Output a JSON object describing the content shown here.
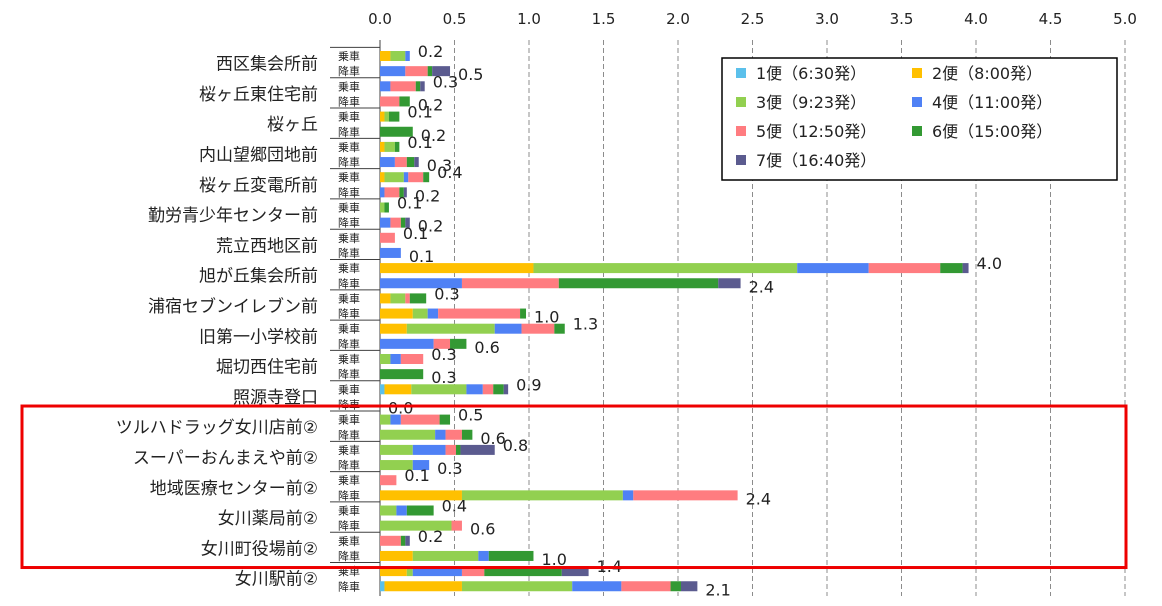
{
  "chart_data": {
    "type": "bar",
    "orientation": "horizontal",
    "stacked": true,
    "xlim": [
      0,
      5
    ],
    "x_ticks": [
      "0.0",
      "0.5",
      "1.0",
      "1.5",
      "2.0",
      "2.5",
      "3.0",
      "3.5",
      "4.0",
      "4.5",
      "5.0"
    ],
    "x_tick_values": [
      0,
      0.5,
      1,
      1.5,
      2,
      2.5,
      3,
      3.5,
      4,
      4.5,
      5
    ],
    "grid": "vertical dashed",
    "legend_position": "top-right",
    "row_kinds": [
      "乗車",
      "降車"
    ],
    "series": [
      {
        "name": "1便（6:30発）",
        "color": "#5bc0eb"
      },
      {
        "name": "2便（8:00発）",
        "color": "#ffc000"
      },
      {
        "name": "3便（9:23発）",
        "color": "#92d050"
      },
      {
        "name": "4便（11:00発）",
        "color": "#4f81f5"
      },
      {
        "name": "5便（12:50発）",
        "color": "#ff7c80"
      },
      {
        "name": "6便（15:00発）",
        "color": "#339933"
      },
      {
        "name": "7便（16:40発）",
        "color": "#5b5b8f"
      }
    ],
    "stops": [
      {
        "name": "西区集会所前",
        "boarding": {
          "values": [
            0,
            0.07,
            0.1,
            0.03,
            0,
            0,
            0
          ],
          "total_label": "0.2"
        },
        "alighting": {
          "values": [
            0,
            0,
            0,
            0.17,
            0.15,
            0.03,
            0.12
          ],
          "total_label": "0.5"
        }
      },
      {
        "name": "桜ヶ丘東住宅前",
        "boarding": {
          "values": [
            0,
            0,
            0,
            0.07,
            0.17,
            0.03,
            0.03
          ],
          "total_label": "0.3"
        },
        "alighting": {
          "values": [
            0,
            0,
            0,
            0,
            0.13,
            0.07,
            0
          ],
          "total_label": "0.2"
        }
      },
      {
        "name": "桜ヶ丘",
        "boarding": {
          "values": [
            0,
            0.03,
            0.03,
            0,
            0,
            0.07,
            0
          ],
          "total_label": "0.1"
        },
        "alighting": {
          "values": [
            0,
            0,
            0,
            0,
            0,
            0.22,
            0
          ],
          "total_label": "0.2"
        }
      },
      {
        "name": "内山望郷団地前",
        "boarding": {
          "values": [
            0,
            0.03,
            0.07,
            0,
            0,
            0.03,
            0
          ],
          "total_label": "0.1"
        },
        "alighting": {
          "values": [
            0,
            0,
            0,
            0.1,
            0.08,
            0.05,
            0.03
          ],
          "total_label": "0.3"
        }
      },
      {
        "name": "桜ヶ丘変電所前",
        "boarding": {
          "values": [
            0,
            0.03,
            0.13,
            0.03,
            0.1,
            0.04,
            0
          ],
          "total_label": "0.4"
        },
        "alighting": {
          "values": [
            0,
            0,
            0,
            0.03,
            0.1,
            0.03,
            0.02
          ],
          "total_label": "0.2"
        }
      },
      {
        "name": "勤労青少年センター前",
        "boarding": {
          "values": [
            0,
            0,
            0.03,
            0,
            0,
            0.03,
            0
          ],
          "total_label": "0.1"
        },
        "alighting": {
          "values": [
            0,
            0,
            0,
            0.07,
            0.07,
            0.03,
            0.03
          ],
          "total_label": "0.2"
        }
      },
      {
        "name": "荒立西地区前",
        "boarding": {
          "values": [
            0,
            0,
            0,
            0,
            0.1,
            0,
            0
          ],
          "total_label": "0.1"
        },
        "alighting": {
          "values": [
            0,
            0,
            0,
            0.14,
            0,
            0,
            0
          ],
          "total_label": "0.1"
        }
      },
      {
        "name": "旭が丘集会所前",
        "boarding": {
          "values": [
            0,
            1.03,
            1.77,
            0.48,
            0.48,
            0.15,
            0.04
          ],
          "total_label": "4.0"
        },
        "alighting": {
          "values": [
            0,
            0,
            0,
            0.55,
            0.65,
            1.07,
            0.15
          ],
          "total_label": "2.4"
        }
      },
      {
        "name": "浦宿セブンイレブン前",
        "boarding": {
          "values": [
            0,
            0.07,
            0.1,
            0,
            0.03,
            0.11,
            0
          ],
          "total_label": "0.3"
        },
        "alighting": {
          "values": [
            0,
            0.22,
            0.1,
            0.07,
            0.55,
            0.04,
            0
          ],
          "total_label": "1.0"
        }
      },
      {
        "name": "旧第一小学校前",
        "boarding": {
          "values": [
            0,
            0.18,
            0.59,
            0.18,
            0.22,
            0.07,
            0
          ],
          "total_label": "1.3"
        },
        "alighting": {
          "values": [
            0,
            0,
            0,
            0.36,
            0.11,
            0.11,
            0
          ],
          "total_label": "0.6"
        }
      },
      {
        "name": "堀切西住宅前",
        "boarding": {
          "values": [
            0,
            0,
            0.07,
            0.07,
            0.15,
            0,
            0
          ],
          "total_label": "0.3"
        },
        "alighting": {
          "values": [
            0,
            0,
            0,
            0,
            0,
            0.29,
            0
          ],
          "total_label": "0.3"
        }
      },
      {
        "name": "照源寺登口",
        "boarding": {
          "values": [
            0.03,
            0.18,
            0.37,
            0.11,
            0.07,
            0.07,
            0.03
          ],
          "total_label": "0.9"
        },
        "alighting": {
          "values": [
            0,
            0,
            0,
            0,
            0,
            0,
            0
          ],
          "total_label": "0.0"
        }
      },
      {
        "name": "ツルハドラッグ女川店前②",
        "boarding": {
          "values": [
            0,
            0,
            0.07,
            0.07,
            0.26,
            0.07,
            0
          ],
          "total_label": "0.5"
        },
        "alighting": {
          "values": [
            0,
            0,
            0.37,
            0.07,
            0.11,
            0.07,
            0
          ],
          "total_label": "0.6"
        }
      },
      {
        "name": "スーパーおんまえや前②",
        "boarding": {
          "values": [
            0,
            0,
            0.22,
            0.22,
            0.07,
            0.03,
            0.23
          ],
          "total_label": "0.8"
        },
        "alighting": {
          "values": [
            0,
            0,
            0.22,
            0.11,
            0,
            0,
            0
          ],
          "total_label": "0.3"
        }
      },
      {
        "name": "地域医療センター前②",
        "boarding": {
          "values": [
            0,
            0,
            0,
            0,
            0.11,
            0,
            0
          ],
          "total_label": "0.1"
        },
        "alighting": {
          "values": [
            0,
            0.55,
            1.08,
            0.07,
            0.7,
            0,
            0
          ],
          "total_label": "2.4"
        }
      },
      {
        "name": "女川薬局前②",
        "boarding": {
          "values": [
            0,
            0,
            0.11,
            0.07,
            0,
            0.18,
            0
          ],
          "total_label": "0.4"
        },
        "alighting": {
          "values": [
            0,
            0,
            0.48,
            0,
            0.07,
            0,
            0
          ],
          "total_label": "0.6"
        }
      },
      {
        "name": "女川町役場前②",
        "boarding": {
          "values": [
            0,
            0,
            0,
            0,
            0.14,
            0.03,
            0.03
          ],
          "total_label": "0.2"
        },
        "alighting": {
          "values": [
            0,
            0.22,
            0.44,
            0.07,
            0,
            0.3,
            0
          ],
          "total_label": "1.0"
        }
      },
      {
        "name": "女川駅前②",
        "boarding": {
          "values": [
            0,
            0.18,
            0.04,
            0.33,
            0.15,
            0.52,
            0.18
          ],
          "total_label": "1.4"
        },
        "alighting": {
          "values": [
            0.03,
            0.52,
            0.74,
            0.33,
            0.33,
            0.07,
            0.11
          ],
          "total_label": "2.1"
        }
      }
    ],
    "highlight": {
      "from_stop_index": 12,
      "to_stop_index": 17,
      "color": "#ee0000"
    }
  }
}
